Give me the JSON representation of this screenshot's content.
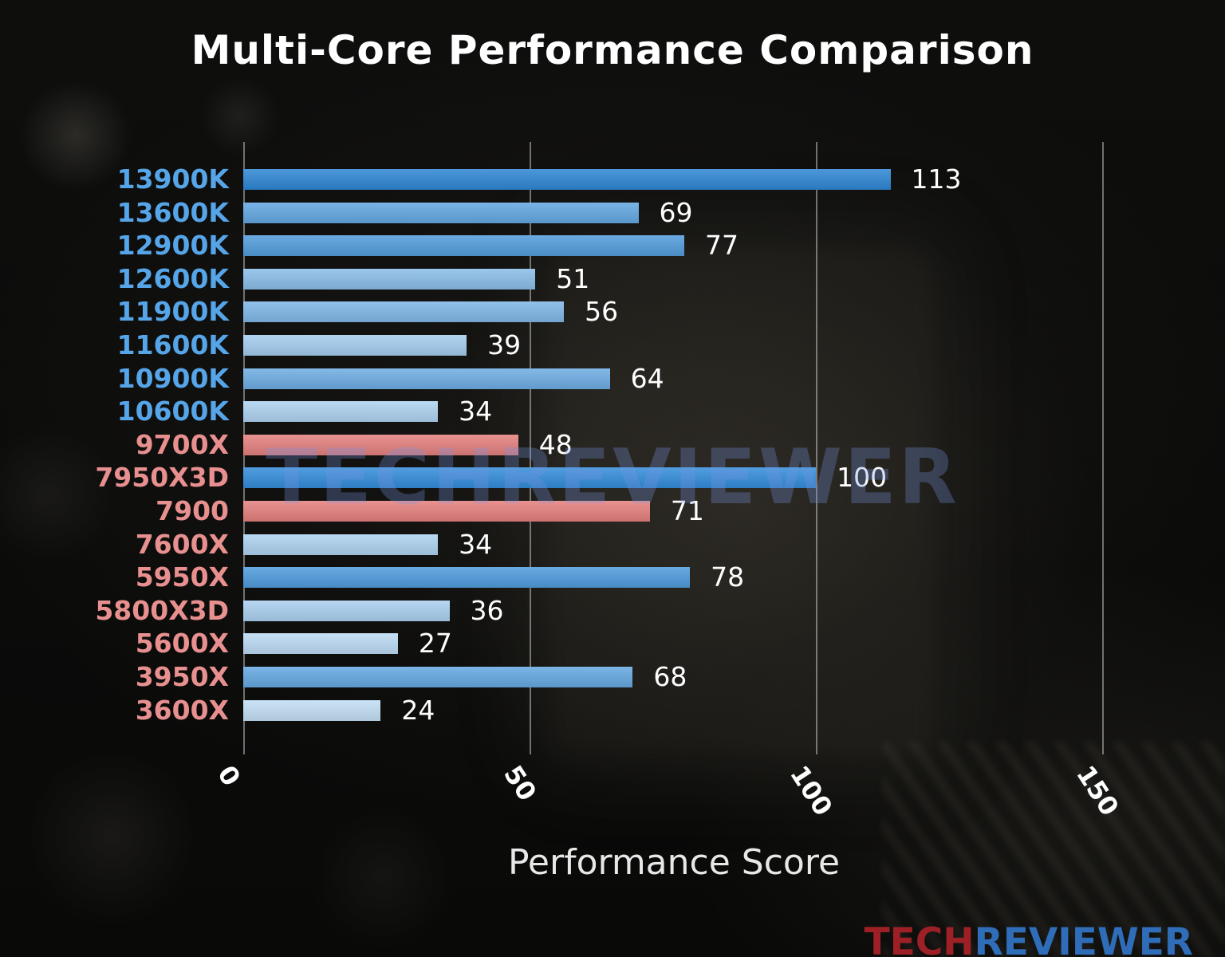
{
  "watermark": "TECHREVIEWER",
  "logo": {
    "tech": "TECH",
    "reviewer": "REVIEWER"
  },
  "chart_data": {
    "type": "bar",
    "orientation": "horizontal",
    "title": "Multi-Core Performance Comparison",
    "xlabel": "Performance Score",
    "xlim": [
      0,
      165
    ],
    "xticks": [
      0,
      50,
      100,
      150
    ],
    "grid": true,
    "categories": [
      "13900K",
      "13600K",
      "12900K",
      "12600K",
      "11900K",
      "11600K",
      "10900K",
      "10600K",
      "9700X",
      "7950X3D",
      "7900",
      "7600X",
      "5950X",
      "5800X3D",
      "5600X",
      "3950X",
      "3600X"
    ],
    "values": [
      113,
      69,
      77,
      51,
      56,
      39,
      64,
      34,
      48,
      100,
      71,
      34,
      78,
      36,
      27,
      68,
      24
    ],
    "bar_colors": [
      "#2e86d4",
      "#63a7e1",
      "#529cdc",
      "#8abde9",
      "#7fb7e7",
      "#a3ccee",
      "#6dade3",
      "#aed2f0",
      "#e4807e",
      "#338cda",
      "#e4807e",
      "#aed2f0",
      "#4f9bdc",
      "#aad0ef",
      "#bcdaf3",
      "#65a8e1",
      "#c2def4"
    ],
    "label_colors": [
      "#56a5e8",
      "#56a5e8",
      "#56a5e8",
      "#56a5e8",
      "#56a5e8",
      "#56a5e8",
      "#56a5e8",
      "#56a5e8",
      "#e89090",
      "#e89090",
      "#e89090",
      "#e89090",
      "#e89090",
      "#e89090",
      "#e89090",
      "#e89090",
      "#e89090"
    ],
    "colors": {
      "grid": "#c3c3c3",
      "value_label": "#ffffff",
      "tick_label": "#ffffff",
      "axis_label": "#e8e8e8",
      "title": "#ffffff",
      "watermark": "#7896e1",
      "logo_tech": "#9c2026",
      "logo_reviewer": "#2f6db8"
    }
  }
}
